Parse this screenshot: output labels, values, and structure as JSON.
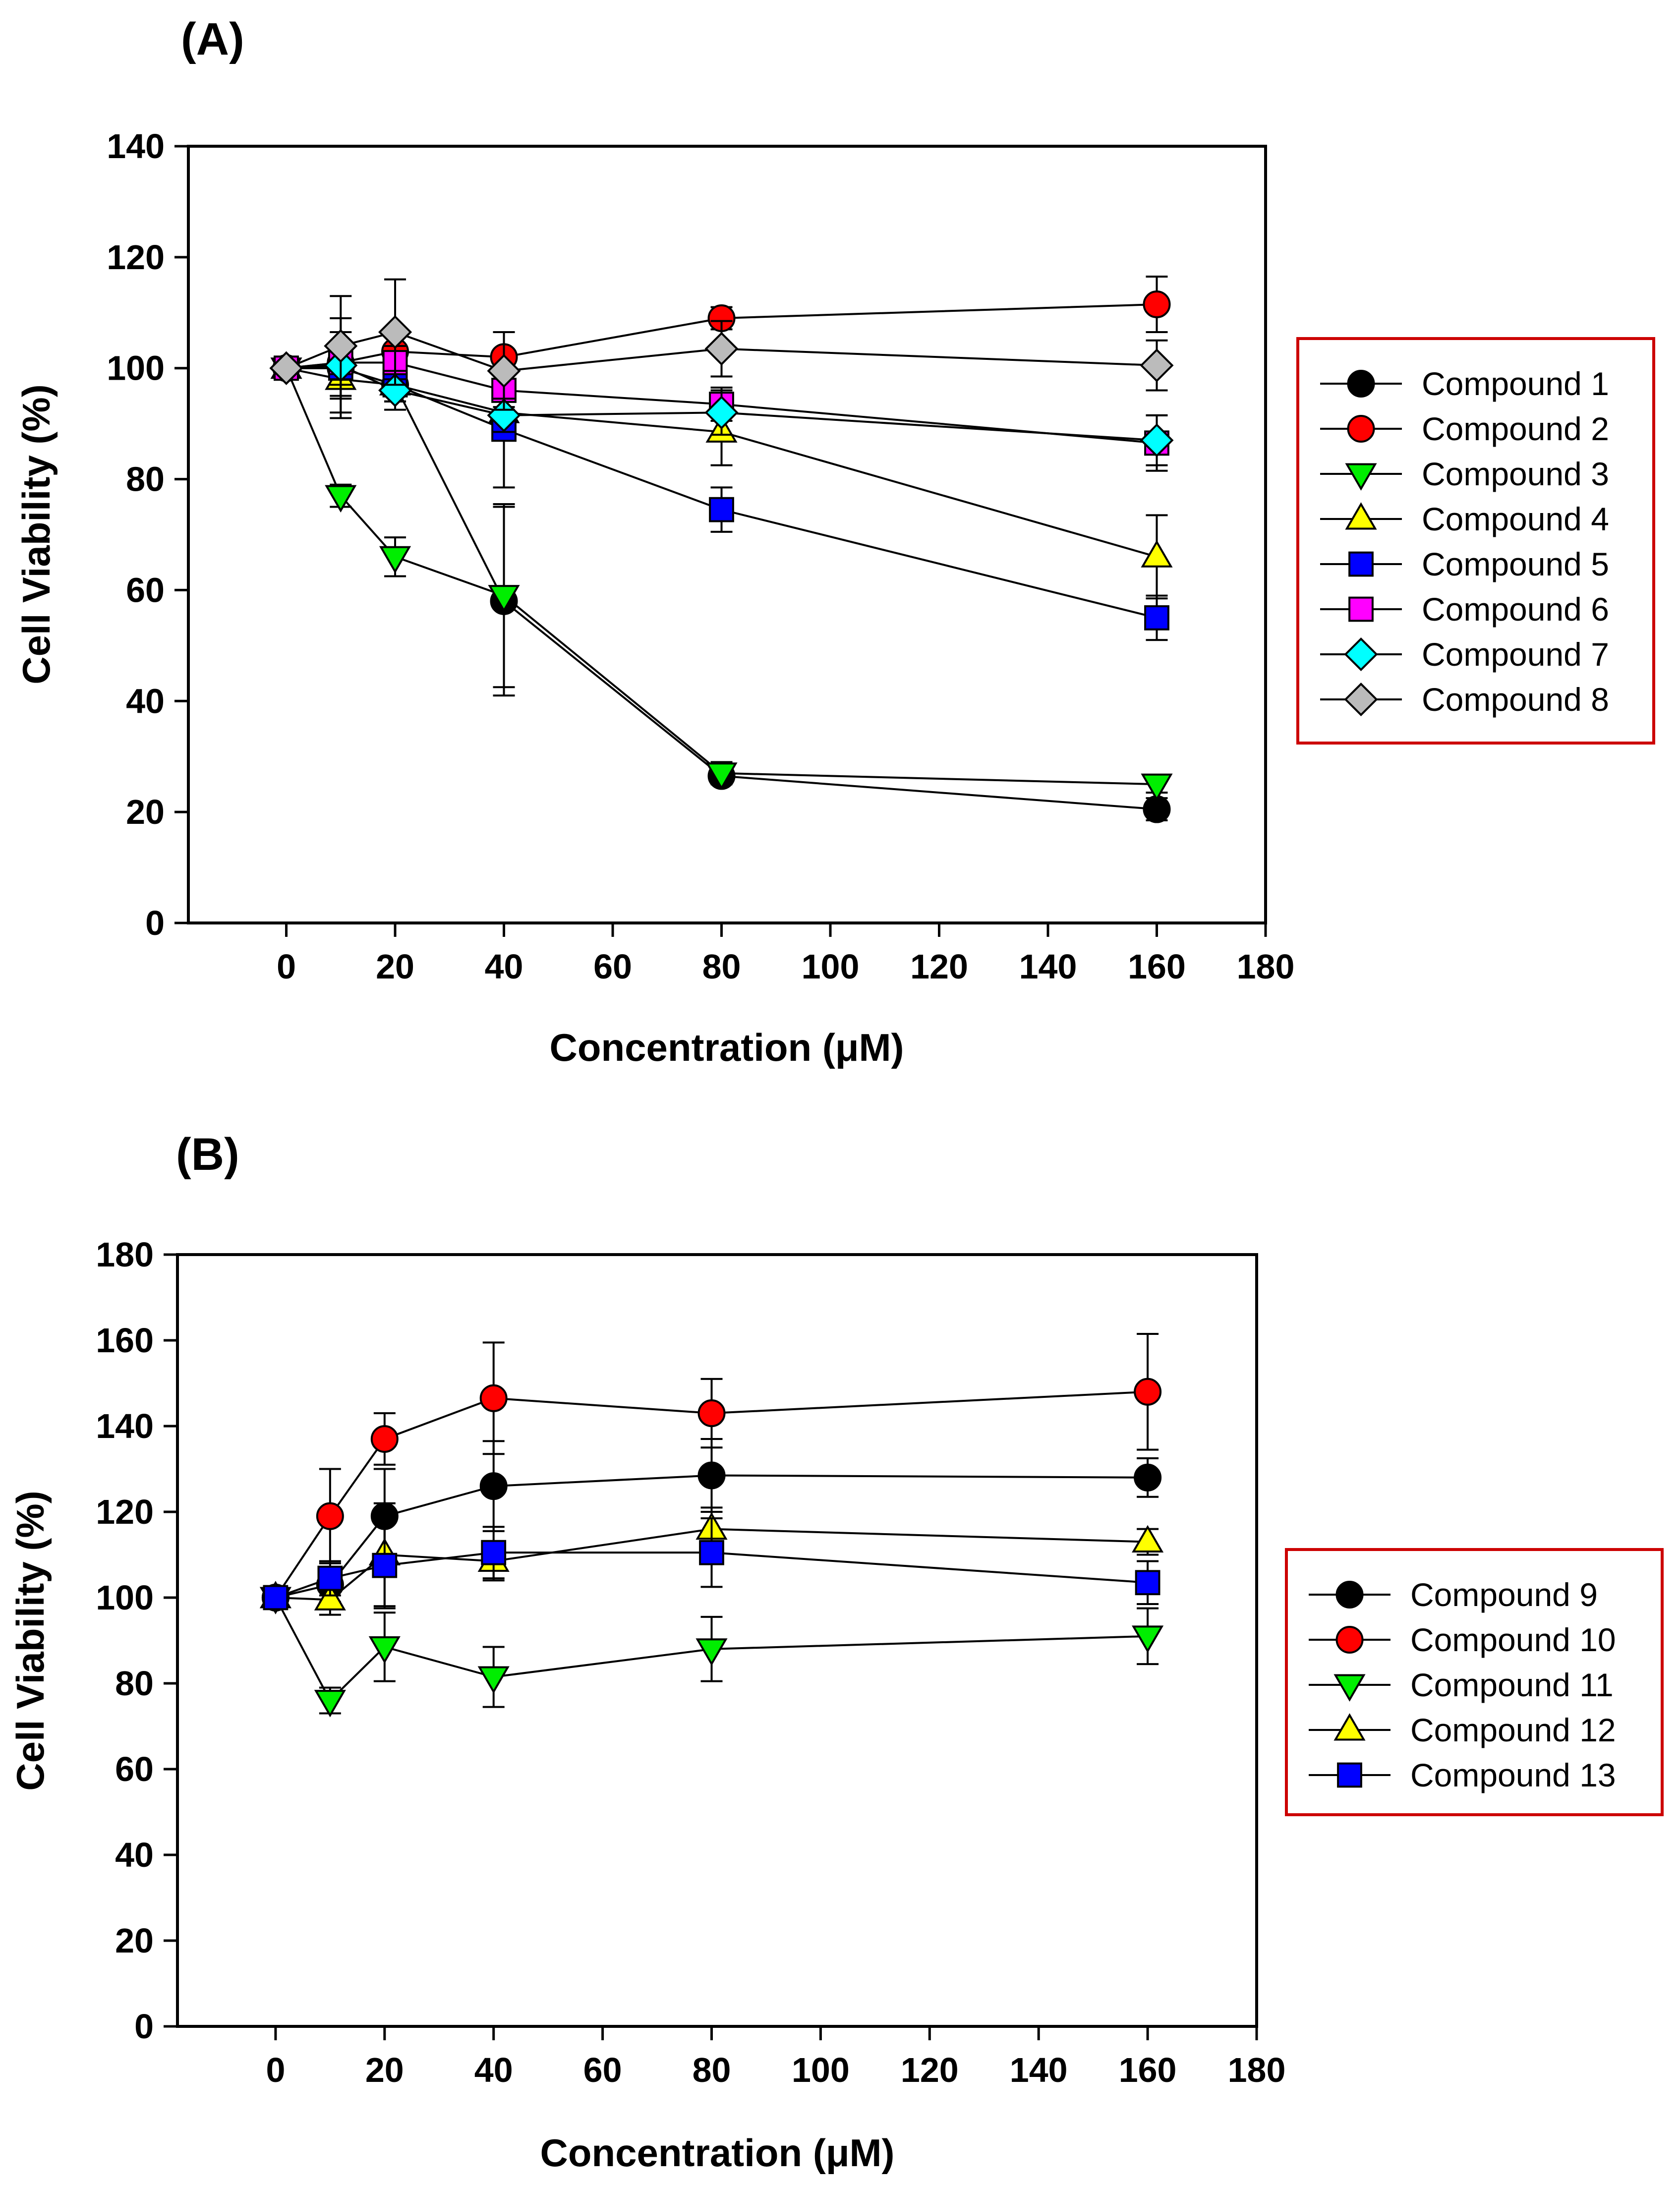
{
  "chart_data": [
    {
      "panel_label": "(A)",
      "type": "line",
      "xlabel": "Concentration (μM)",
      "ylabel": "Cell Viability (%)",
      "xlim": [
        -18,
        180
      ],
      "ylim": [
        0,
        140
      ],
      "xticks": [
        0,
        20,
        40,
        60,
        80,
        100,
        120,
        140,
        160,
        180
      ],
      "yticks": [
        0,
        20,
        40,
        60,
        80,
        100,
        120,
        140
      ],
      "x": [
        0,
        10,
        20,
        40,
        80,
        160
      ],
      "legend_position": "right",
      "legend_border_color": "#cc0000",
      "series": [
        {
          "name": "Compound 1",
          "marker": "circle",
          "color": "#000000",
          "values": [
            100,
            100,
            97,
            58,
            26.5,
            20.5
          ],
          "errors": [
            0,
            9,
            3,
            17,
            1.5,
            2
          ]
        },
        {
          "name": "Compound 2",
          "marker": "circle",
          "color": "#ff0000",
          "values": [
            100,
            101,
            103,
            102,
            109,
            111.5
          ],
          "errors": [
            0,
            3,
            3,
            4.5,
            2,
            5
          ]
        },
        {
          "name": "Compound 3",
          "marker": "triangle-down",
          "color": "#00ee00",
          "values": [
            100,
            77,
            66,
            59,
            27,
            25
          ],
          "errors": [
            0,
            2,
            3.5,
            16.5,
            2,
            1.5
          ]
        },
        {
          "name": "Compound 4",
          "marker": "triangle-up",
          "color": "#ffff00",
          "values": [
            100,
            98,
            97,
            92,
            88.5,
            66
          ],
          "errors": [
            0,
            6,
            3,
            4,
            6,
            7.5
          ]
        },
        {
          "name": "Compound 5",
          "marker": "square",
          "color": "#0000ff",
          "values": [
            100,
            100,
            97,
            89,
            74.5,
            55
          ],
          "errors": [
            0,
            3,
            3,
            10.5,
            4,
            4
          ]
        },
        {
          "name": "Compound 6",
          "marker": "square",
          "color": "#ff00ff",
          "values": [
            100,
            101,
            101,
            96,
            93.5,
            86.5
          ],
          "errors": [
            0,
            3,
            3,
            3,
            3,
            5
          ]
        },
        {
          "name": "Compound 7",
          "marker": "diamond",
          "color": "#00ffff",
          "values": [
            100,
            100.5,
            96,
            91.5,
            92,
            87
          ],
          "errors": [
            0,
            6,
            3.5,
            3,
            4,
            4.5
          ]
        },
        {
          "name": "Compound 8",
          "marker": "diamond",
          "color": "#bbbbbb",
          "values": [
            100,
            104,
            106.5,
            99.5,
            103.5,
            100.5
          ],
          "errors": [
            0,
            9,
            9.5,
            7,
            5,
            4.5
          ]
        }
      ]
    },
    {
      "panel_label": "(B)",
      "type": "line",
      "xlabel": "Concentration (μM)",
      "ylabel": "Cell Viability (%)",
      "xlim": [
        -18,
        180
      ],
      "ylim": [
        0,
        180
      ],
      "xticks": [
        0,
        20,
        40,
        60,
        80,
        100,
        120,
        140,
        160,
        180
      ],
      "yticks": [
        0,
        20,
        40,
        60,
        80,
        100,
        120,
        140,
        160,
        180
      ],
      "x": [
        0,
        10,
        20,
        40,
        80,
        160
      ],
      "legend_position": "right",
      "legend_border_color": "#cc0000",
      "series": [
        {
          "name": "Compound 9",
          "marker": "circle",
          "color": "#000000",
          "values": [
            100,
            103,
            119,
            126,
            128.5,
            128
          ],
          "errors": [
            0,
            4,
            11,
            10.5,
            8.5,
            4.5
          ]
        },
        {
          "name": "Compound 10",
          "marker": "circle",
          "color": "#ff0000",
          "values": [
            100,
            119,
            137,
            146.5,
            143,
            148
          ],
          "errors": [
            0,
            11,
            6,
            13,
            8,
            13.5
          ]
        },
        {
          "name": "Compound 11",
          "marker": "triangle-down",
          "color": "#00ee00",
          "values": [
            100,
            76,
            88.5,
            81.5,
            88,
            91
          ],
          "errors": [
            0,
            3,
            8,
            7,
            7.5,
            6.5
          ]
        },
        {
          "name": "Compound 12",
          "marker": "triangle-up",
          "color": "#ffff00",
          "values": [
            100,
            99.5,
            110,
            108.5,
            116,
            113
          ],
          "errors": [
            0,
            3.5,
            12,
            4.5,
            5,
            3
          ]
        },
        {
          "name": "Compound 13",
          "marker": "square",
          "color": "#0000ff",
          "values": [
            100,
            104.5,
            107.5,
            110.5,
            110.5,
            103.5
          ],
          "errors": [
            0,
            4,
            10,
            6,
            8,
            5
          ]
        }
      ]
    }
  ]
}
